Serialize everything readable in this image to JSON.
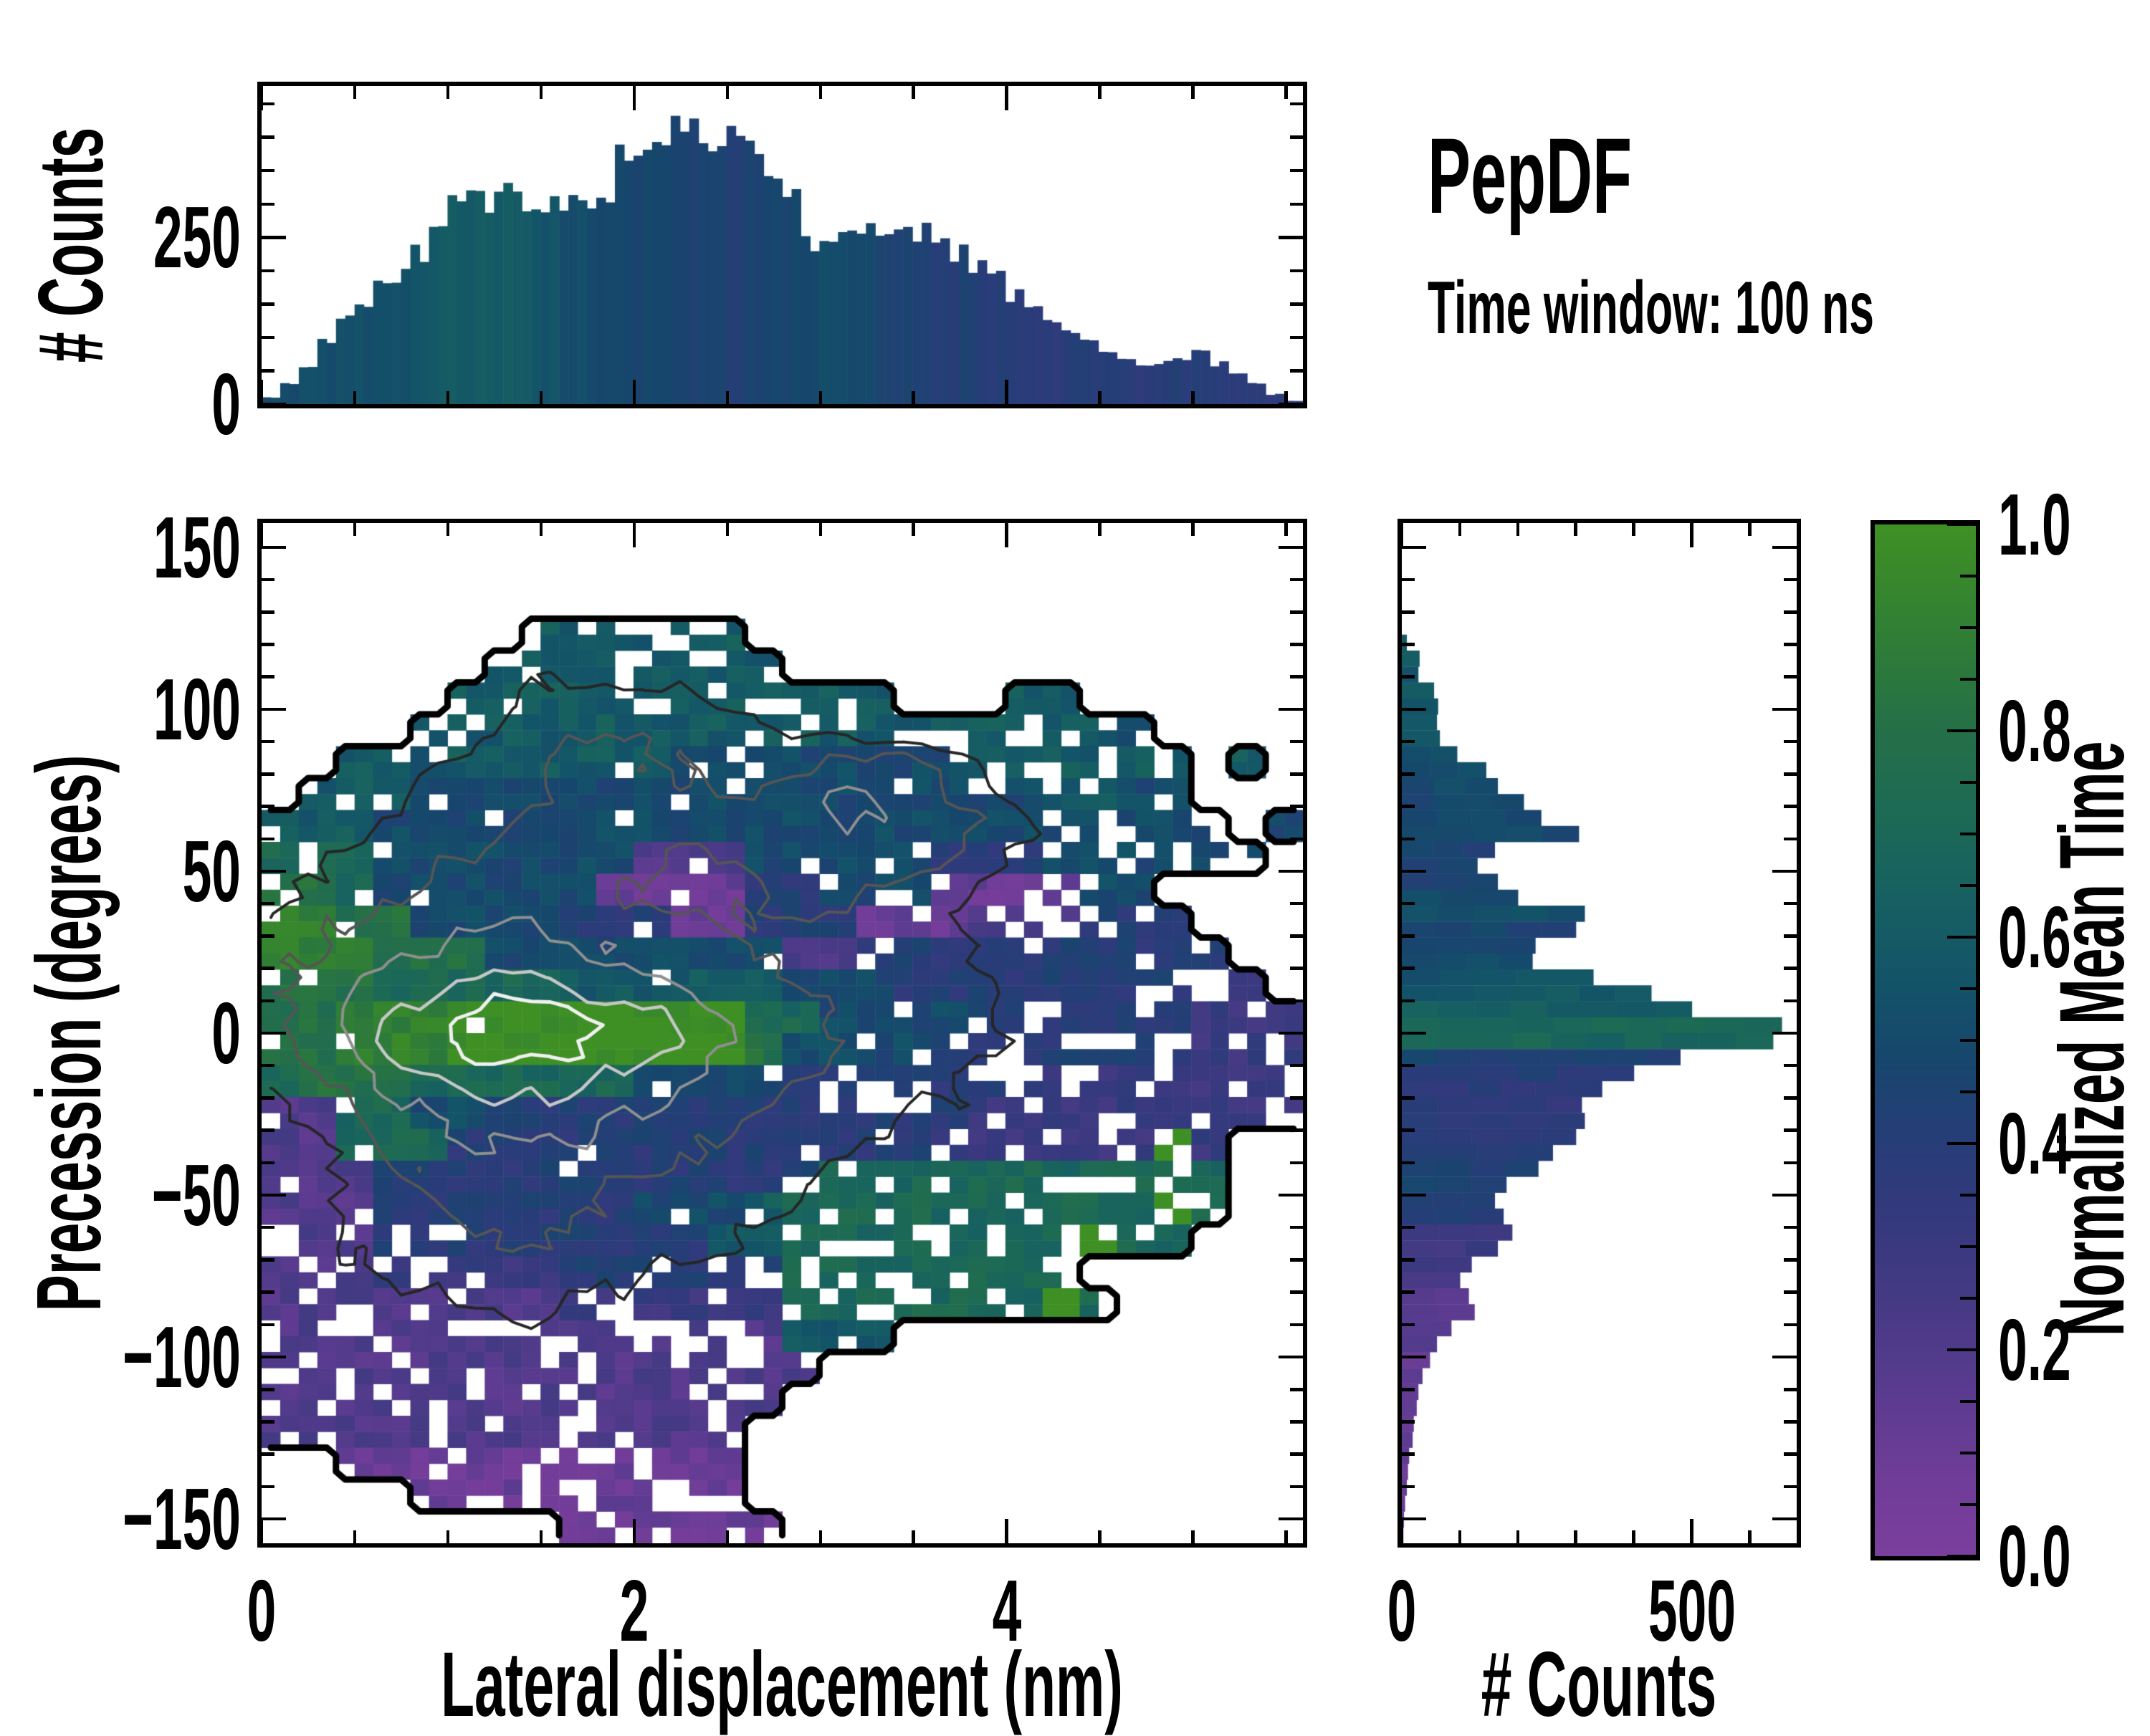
{
  "title": {
    "text": "PepDF",
    "subtitle": "Time window: 100 ns"
  },
  "axes": {
    "top_hist": {
      "ylabel": "# Counts",
      "ytick_labels": [
        "0",
        "250"
      ],
      "ytick_values": [
        0,
        250
      ],
      "yminor_values": [
        50,
        100,
        150,
        200,
        300,
        350,
        400,
        450
      ],
      "y_range": [
        0,
        477
      ]
    },
    "main": {
      "xlabel": "Lateral displacement (nm)",
      "ylabel": "Precession (degrees)",
      "xtick_labels": [
        "0",
        "2",
        "4"
      ],
      "xtick_values": [
        0,
        2,
        4
      ],
      "xminor_values": [
        0.5,
        1,
        1.5,
        2.5,
        3,
        3.5,
        4.5,
        5,
        5.5
      ],
      "x_range": [
        0,
        5.59
      ],
      "ytick_labels": [
        "150",
        "100",
        "50",
        "0",
        "−50",
        "−100",
        "−150"
      ],
      "ytick_values": [
        150,
        100,
        50,
        0,
        -50,
        -100,
        -150
      ],
      "yminor_step": 10,
      "y_range": [
        -157.5,
        157.5
      ]
    },
    "right_hist": {
      "xlabel": "# Counts",
      "xtick_labels": [
        "0",
        "500"
      ],
      "xtick_values": [
        0,
        500
      ],
      "xminor_values": [
        100,
        200,
        300,
        400,
        600
      ],
      "x_range": [
        0,
        681
      ]
    }
  },
  "colorbar": {
    "label": "Normalized Mean Time",
    "tick_labels": [
      "0.0",
      "0.2",
      "0.4",
      "0.6",
      "0.8",
      "1.0"
    ],
    "tick_values": [
      0.0,
      0.2,
      0.4,
      0.6,
      0.8,
      1.0
    ],
    "minor_step": 0.05,
    "range": [
      0,
      1
    ]
  },
  "colors": {
    "frame": "#000000",
    "background": "#ffffff",
    "colormap_stops": [
      [
        0.0,
        "#7b3e9c"
      ],
      [
        0.08,
        "#6f3d97"
      ],
      [
        0.16,
        "#5a3b8f"
      ],
      [
        0.24,
        "#473a85"
      ],
      [
        0.32,
        "#36397e"
      ],
      [
        0.4,
        "#273d78"
      ],
      [
        0.48,
        "#17466d"
      ],
      [
        0.56,
        "#135468"
      ],
      [
        0.64,
        "#176061"
      ],
      [
        0.72,
        "#1d6a55"
      ],
      [
        0.8,
        "#256f48"
      ],
      [
        0.88,
        "#2e7c38"
      ],
      [
        1.0,
        "#3f9024"
      ]
    ],
    "contour_boundary": "#000000",
    "contour_levels": [
      {
        "level": 2.5,
        "color": "#262626",
        "width": 4
      },
      {
        "level": 4.2,
        "color": "#555555",
        "width": 4
      },
      {
        "level": 6.0,
        "color": "#8f8f8f",
        "width": 4
      },
      {
        "level": 7.5,
        "color": "#c6c6c6",
        "width": 4.5
      },
      {
        "level": 8.6,
        "color": "#f0f0f0",
        "width": 5
      }
    ]
  },
  "chart_data": [
    {
      "id": "top_histogram",
      "type": "bar",
      "xlabel": "Lateral displacement (nm)",
      "ylabel": "# Counts",
      "x_range": [
        0,
        5.6
      ],
      "ylim": [
        0,
        477
      ],
      "bin_width_nm": 0.1,
      "values": [
        10,
        30,
        60,
        95,
        130,
        150,
        170,
        200,
        230,
        260,
        290,
        300,
        295,
        310,
        300,
        290,
        295,
        300,
        330,
        360,
        385,
        410,
        400,
        395,
        405,
        390,
        380,
        340,
        300,
        250,
        235,
        245,
        260,
        270,
        275,
        265,
        250,
        230,
        205,
        185,
        165,
        150,
        130,
        110,
        95,
        80,
        65,
        55,
        60,
        70,
        75,
        60,
        45,
        30,
        15,
        5
      ],
      "mean_time_colors": [
        0.5,
        0.5,
        0.51,
        0.52,
        0.52,
        0.53,
        0.54,
        0.55,
        0.57,
        0.59,
        0.6,
        0.59,
        0.6,
        0.61,
        0.59,
        0.56,
        0.53,
        0.51,
        0.5,
        0.48,
        0.47,
        0.46,
        0.45,
        0.46,
        0.45,
        0.44,
        0.45,
        0.46,
        0.48,
        0.5,
        0.51,
        0.5,
        0.48,
        0.46,
        0.45,
        0.44,
        0.43,
        0.42,
        0.41,
        0.4,
        0.4,
        0.39,
        0.38,
        0.39,
        0.4,
        0.39,
        0.38,
        0.38,
        0.39,
        0.4,
        0.4,
        0.39,
        0.38,
        0.37,
        0.36,
        0.36
      ]
    },
    {
      "id": "main_heatmap",
      "type": "heatmap",
      "xlabel": "Lateral displacement (nm)",
      "ylabel": "Precession (degrees)",
      "x_range": [
        0,
        5.6
      ],
      "y_range": [
        -157,
        157
      ],
      "grid_cols": 28,
      "grid_rows": 32,
      "cell_x_nm": 0.2,
      "cell_y_deg": 9.8,
      "value_meaning": "normalized mean time, '.' = empty bin, digit/10 (a = 1.0)",
      "values": [
        "............................",
        "............................",
        "............................",
        ".......666666...............",
        "......66666666..............",
        ".....666666666666...66......",
        "....66666666666666666665....",
        "..66566666655555555666666.6.",
        ".666555555555555555556655...",
        "66655555555555555555555555.5",
        "777555555522255555444555555.",
        "887555555111144555111155....",
        "9988555544411444111222444...",
        "99988855555555224444444444..",
        "888777776666665554444444433.",
        "88999aaaaaaaa775555444444333",
        "88999aaaaaaaa855554444444333",
        "7888777777555544444443333333",
        "2277555444444444444333333333",
        "227774444444444444333333 3..",
        "22244444444444477777777777..",
        "222444444455567777777777 7..",
        "2224444444446677777777 77...",
        "2223333344444477777777......",
        "222222223333337777777 7.....",
        "22222222222222666...........",
        "222222222222222.............",
        "22222222222222..............",
        "2222222222222...............",
        "..11111111111...............",
        "....111111111...............",
        "........111111.............."
      ],
      "density": [
        "0000000000000000000000000000",
        "0000000000000000000000000000",
        "0000000000000000000000000000",
        "0000000111111100000000000000",
        "0000011222221100000000000000",
        "0000112333332211000011000000",
        "0001223344443322110111100000",
        "0012233455443335554211100000",
        "0122334455544466654321110000",
        "1223344555555556655432211001",
        "2233445555444555554322211100",
        "2334455554444455443222111000",
        "3445566655444444333222211000",
        "4456677766555443333222221000",
        "4567788877665544333322221100",
        "4568899998876554433322221111",
        "4568999998876554433322221111",
        "3457788887765544333222211111",
        "2346677776655443322222111110",
        "2235566665544333222221111100",
        "2234455554444332222211111000",
        "2233445544333322222111111000",
        "1233344443333222221111111000",
        "1223334433222222111111100000",
        "1122233322222211111111000000",
        "1122222222221111111000000000",
        "1112222222111111110000000000",
        "1112222221111111100000000000",
        "0111222211111110000000000000",
        "0011122211111100000000000000",
        "0001112111111000000000000000",
        "0000111111110000000000000000"
      ]
    },
    {
      "id": "right_histogram",
      "type": "bar",
      "xlabel": "# Counts",
      "ylabel": "Precession (degrees)",
      "y_range": [
        157,
        -157
      ],
      "xlim": [
        0,
        681
      ],
      "bin_height_deg": 4.9,
      "values": [
        0,
        0,
        0,
        0,
        0,
        0,
        0,
        8,
        30,
        28,
        55,
        62,
        60,
        65,
        95,
        145,
        165,
        210,
        240,
        305,
        160,
        130,
        165,
        200,
        315,
        300,
        230,
        225,
        330,
        430,
        500,
        655,
        640,
        480,
        400,
        345,
        310,
        315,
        300,
        260,
        235,
        180,
        160,
        175,
        190,
        165,
        120,
        100,
        115,
        125,
        85,
        60,
        48,
        35,
        28,
        25,
        20,
        18,
        12,
        10,
        8,
        5,
        3,
        2
      ],
      "mean_time_colors": [
        0.55,
        0.55,
        0.55,
        0.55,
        0.55,
        0.55,
        0.55,
        0.58,
        0.58,
        0.58,
        0.58,
        0.56,
        0.55,
        0.55,
        0.52,
        0.5,
        0.5,
        0.48,
        0.48,
        0.5,
        0.45,
        0.44,
        0.46,
        0.5,
        0.52,
        0.47,
        0.45,
        0.5,
        0.55,
        0.58,
        0.62,
        0.7,
        0.68,
        0.45,
        0.4,
        0.37,
        0.36,
        0.37,
        0.38,
        0.4,
        0.44,
        0.46,
        0.44,
        0.42,
        0.3,
        0.28,
        0.26,
        0.22,
        0.18,
        0.17,
        0.16,
        0.15,
        0.14,
        0.14,
        0.13,
        0.13,
        0.13,
        0.12,
        0.12,
        0.12,
        0.12,
        0.12,
        0.12,
        0.12
      ]
    },
    {
      "id": "colorbar_scale",
      "type": "heatmap",
      "label": "Normalized Mean Time",
      "range": [
        0.0,
        1.0
      ],
      "orientation": "vertical"
    }
  ]
}
